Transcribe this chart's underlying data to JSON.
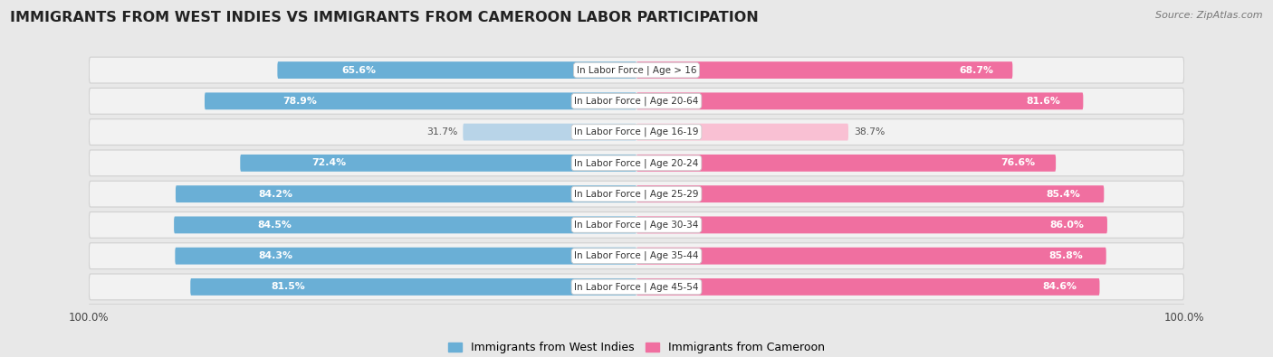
{
  "title": "IMMIGRANTS FROM WEST INDIES VS IMMIGRANTS FROM CAMEROON LABOR PARTICIPATION",
  "source": "Source: ZipAtlas.com",
  "categories": [
    "In Labor Force | Age > 16",
    "In Labor Force | Age 20-64",
    "In Labor Force | Age 16-19",
    "In Labor Force | Age 20-24",
    "In Labor Force | Age 25-29",
    "In Labor Force | Age 30-34",
    "In Labor Force | Age 35-44",
    "In Labor Force | Age 45-54"
  ],
  "west_indies": [
    65.6,
    78.9,
    31.7,
    72.4,
    84.2,
    84.5,
    84.3,
    81.5
  ],
  "cameroon": [
    68.7,
    81.6,
    38.7,
    76.6,
    85.4,
    86.0,
    85.8,
    84.6
  ],
  "west_indies_color": "#6aafd6",
  "west_indies_light_color": "#b8d4e8",
  "cameroon_color": "#f06fa0",
  "cameroon_light_color": "#f9c0d3",
  "bg_color": "#e8e8e8",
  "row_bg_color": "#f2f2f2",
  "row_border_color": "#d0d0d0",
  "title_fontsize": 11.5,
  "label_fontsize": 7.5,
  "value_fontsize": 7.8,
  "legend_label_wi": "Immigrants from West Indies",
  "legend_label_cam": "Immigrants from Cameroon",
  "x_max": 100.0
}
